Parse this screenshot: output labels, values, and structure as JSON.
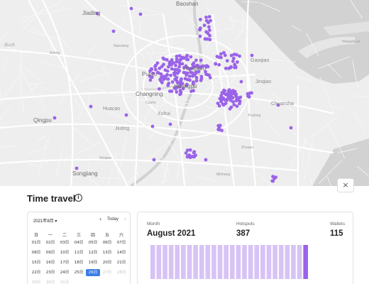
{
  "map": {
    "labels": {
      "baoshan": "Baoshan",
      "jiading": "Jiading",
      "putuo": "Putuo",
      "changning": "Changning",
      "hongkou": "Hongkou",
      "huangpu": "Huangpu",
      "xuhui": "Xuhui",
      "qingpu": "Qingpu",
      "songjiang": "Songjiang",
      "jiuting": "Jiuting",
      "huacao": "Huacao",
      "chuansha": "Chuansha",
      "jinqiao": "Jinqiao",
      "gaoqiao": "Gaoqiao",
      "hengsha": "Hengsha Is",
      "caohe": "Caohe",
      "kunshan_cn": "昆山市",
      "nanxiang": "Nanxiang",
      "anting": "Anting",
      "xinqiao": "Xinqiao",
      "minhang": "Minhang",
      "pudong": "Pudong",
      "zhoupu": "Zhoupu"
    },
    "marker_color": "#9a63e8"
  },
  "panel": {
    "title": "Time travel",
    "info_icon": "info-icon",
    "close_icon": "×"
  },
  "calendar": {
    "month_label": "2021年8月 ▾",
    "prev_icon": "‹",
    "next_icon": "›",
    "today_label": "Today",
    "weekdays": [
      "日",
      "一",
      "二",
      "三",
      "四",
      "五",
      "六"
    ],
    "rows": [
      [
        "01日",
        "02日",
        "03日",
        "04日",
        "05日",
        "06日",
        "07日"
      ],
      [
        "08日",
        "09日",
        "10日",
        "11日",
        "12日",
        "13日",
        "14日"
      ],
      [
        "15日",
        "16日",
        "17日",
        "18日",
        "19日",
        "20日",
        "21日"
      ],
      [
        "22日",
        "23日",
        "24日",
        "25日",
        "26日",
        "27日",
        "28日"
      ],
      [
        "29日",
        "30日",
        "31日"
      ]
    ],
    "selected": "26日",
    "muted": [
      "27日",
      "28日",
      "29日",
      "30日",
      "31日"
    ],
    "selected_color": "#3a7ee8"
  },
  "stats": {
    "month_label": "Month",
    "month_value": "August 2021",
    "hotspots_label": "Hotspots",
    "hotspots_value": "387",
    "wallets_label": "Wallets",
    "wallets_value": "115"
  },
  "bars": {
    "count": 26,
    "normal_color": "#d7c3f5",
    "highlight_color": "#9a63e8",
    "highlight_index": 25
  }
}
